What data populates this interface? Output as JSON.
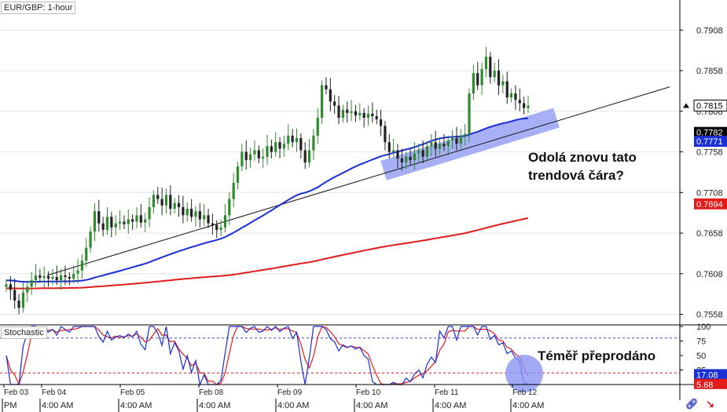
{
  "header": {
    "pair_label": "EUR/GBP: 1-hour",
    "indicator_label": "Stochastic"
  },
  "annotations": {
    "main": "Odolá znovu tato trendová čára?",
    "stoch": "Téměř přeprodáno"
  },
  "colors": {
    "candle_up": "#2e8b2e",
    "candle_down": "#222222",
    "sma_fast": "#1a2fd6",
    "sma_slow": "#e21b1b",
    "trend_line": "#111111",
    "zone": "#8a96f2",
    "stoch_k": "#1a2fd6",
    "stoch_d": "#e21b1b",
    "stoch_level_upper": "#3a4ad8",
    "stoch_level_lower": "#e21b1b"
  },
  "icons": [
    "link-icon",
    "arrow-icon"
  ],
  "chart_data": {
    "type": "candlestick",
    "symbol": "EUR/GBP",
    "timeframe": "1-hour",
    "ylim": [
      0.7545,
      0.7945
    ],
    "y_ticks": [
      "0.7908",
      "0.7858",
      "0.7808",
      "0.7758",
      "0.7708",
      "0.7658",
      "0.7608",
      "0.7558"
    ],
    "price_labels": [
      {
        "value": "0.7815",
        "kind": "last_price"
      },
      {
        "value": "0.7782",
        "kind": "trendline"
      },
      {
        "value": "0.7771",
        "kind": "sma_fast"
      },
      {
        "value": "0.7694",
        "kind": "sma_slow"
      }
    ],
    "x_date_labels": [
      "Feb 03",
      "Feb 04",
      "Feb 05",
      "Feb 08",
      "Feb 09",
      "Feb 10",
      "Feb 11",
      "Feb 12"
    ],
    "x_time_labels": [
      "PM",
      "4:00 AM",
      "4:00 AM",
      "4:00 AM",
      "4:00 AM",
      "4:00 AM",
      "4:00 AM",
      "4:00 AM"
    ],
    "closes": [
      0.7595,
      0.7588,
      0.7575,
      0.7566,
      0.7585,
      0.7592,
      0.76,
      0.7606,
      0.7603,
      0.7605,
      0.7602,
      0.7604,
      0.76,
      0.7606,
      0.7604,
      0.7602,
      0.7608,
      0.7612,
      0.7624,
      0.764,
      0.766,
      0.7685,
      0.767,
      0.7662,
      0.7678,
      0.7665,
      0.767,
      0.7672,
      0.7669,
      0.7675,
      0.7672,
      0.768,
      0.7671,
      0.7675,
      0.769,
      0.7705,
      0.77,
      0.7692,
      0.7705,
      0.7688,
      0.7695,
      0.769,
      0.768,
      0.7688,
      0.7678,
      0.7685,
      0.7675,
      0.768,
      0.767,
      0.7668,
      0.7662,
      0.7665,
      0.768,
      0.77,
      0.772,
      0.774,
      0.7758,
      0.7748,
      0.7755,
      0.776,
      0.775,
      0.7752,
      0.7765,
      0.7758,
      0.777,
      0.7762,
      0.7768,
      0.7778,
      0.777,
      0.7775,
      0.776,
      0.7745,
      0.776,
      0.7778,
      0.78,
      0.784,
      0.7835,
      0.782,
      0.7815,
      0.78,
      0.781,
      0.7806,
      0.7808,
      0.7803,
      0.7806,
      0.78,
      0.7805,
      0.7802,
      0.7798,
      0.779,
      0.777,
      0.7758,
      0.776,
      0.775,
      0.7745,
      0.7752,
      0.7748,
      0.7756,
      0.776,
      0.7752,
      0.7765,
      0.777,
      0.7762,
      0.7768,
      0.7765,
      0.7772,
      0.7775,
      0.7768,
      0.7778,
      0.778,
      0.783,
      0.7855,
      0.784,
      0.786,
      0.7875,
      0.785,
      0.7858,
      0.784,
      0.7845,
      0.7825,
      0.783,
      0.7822,
      0.7818,
      0.7812,
      0.7815
    ],
    "stochastic": {
      "ylim": [
        0,
        100
      ],
      "y_ticks": [
        "100",
        "75",
        "50",
        "25"
      ],
      "levels": [
        80,
        20
      ],
      "k_value": "17.08",
      "d_value": "5.68"
    }
  }
}
